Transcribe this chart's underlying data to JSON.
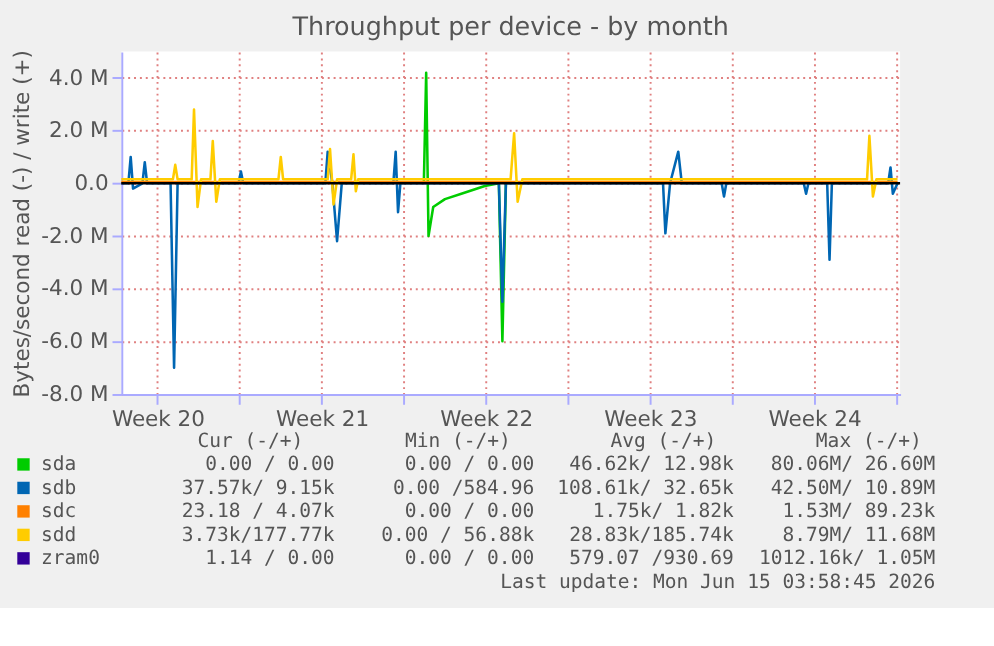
{
  "chart_data": {
    "type": "line",
    "title": "Throughput per device - by month",
    "ylabel": "Bytes/second read (-) / write (+)",
    "xlim": [
      "2026-05-12T23:00",
      "2026-06-15T04:00"
    ],
    "xticks": [
      {
        "value": "2026-05-14T12:00",
        "label": "Week 20"
      },
      {
        "value": "2026-05-18T00:00",
        "label": null
      },
      {
        "value": "2026-05-21T12:00",
        "label": "Week 21"
      },
      {
        "value": "2026-05-25T00:00",
        "label": null
      },
      {
        "value": "2026-05-28T12:00",
        "label": "Week 22"
      },
      {
        "value": "2026-06-01T00:00",
        "label": null
      },
      {
        "value": "2026-06-04T12:00",
        "label": "Week 23"
      },
      {
        "value": "2026-06-08T00:00",
        "label": null
      },
      {
        "value": "2026-06-11T12:00",
        "label": "Week 24"
      },
      {
        "value": "2026-06-15T00:00",
        "label": null
      }
    ],
    "ylim": [
      -8,
      5
    ],
    "yticks": [
      {
        "value": -8,
        "label": "-8.0 M"
      },
      {
        "value": -6,
        "label": "-6.0 M"
      },
      {
        "value": -4,
        "label": "-4.0 M"
      },
      {
        "value": -2,
        "label": "-2.0 M"
      },
      {
        "value": 0,
        "label": "0.0"
      },
      {
        "value": 2,
        "label": "2.0 M"
      },
      {
        "value": 4,
        "label": "4.0 M"
      }
    ],
    "grid": true,
    "legend": "bottom",
    "line_style": "solid",
    "marker": "none",
    "ref_lines": [
      {
        "axis": "y",
        "value": 0,
        "color": "#000000"
      }
    ],
    "series": [
      {
        "name": "sda",
        "color": "#00cc00",
        "x": [
          "2026-05-25T20:36",
          "2026-05-25T23:00",
          "2026-05-26T01:24",
          "2026-05-26T06:12",
          "2026-05-26T18:12",
          "2026-05-27T11:00",
          "2026-05-28T11:00",
          "2026-05-29T01:24",
          "2026-05-29T05:00",
          "2026-05-29T08:36"
        ],
        "values": [
          0,
          4.2,
          -2.0,
          -0.9,
          -0.6,
          -0.4,
          -0.1,
          0,
          -6.0,
          0
        ]
      },
      {
        "name": "sdb",
        "color": "#0066b3",
        "x": [
          "2026-05-12T23:00",
          "2026-05-13T06:12",
          "2026-05-13T08:36",
          "2026-05-13T11:00",
          "2026-05-13T20:36",
          "2026-05-13T23:00",
          "2026-05-14T01:24",
          "2026-05-15T01:24",
          "2026-05-15T05:00",
          "2026-05-15T08:36",
          "2026-05-17T23:00",
          "2026-05-18T01:24",
          "2026-05-18T03:48",
          "2026-05-21T15:48",
          "2026-05-21T18:12",
          "2026-05-21T23:00",
          "2026-05-22T03:48",
          "2026-05-22T08:36",
          "2026-05-24T13:24",
          "2026-05-24T15:48",
          "2026-05-24T18:12",
          "2026-05-24T20:36",
          "2026-05-29T01:24",
          "2026-05-29T05:00",
          "2026-05-29T08:36",
          "2026-06-05T01:24",
          "2026-06-05T03:48",
          "2026-06-05T08:36",
          "2026-06-05T17:00",
          "2026-06-05T20:36",
          "2026-06-07T13:24",
          "2026-06-07T15:48",
          "2026-06-07T18:12",
          "2026-06-11T01:24",
          "2026-06-11T03:48",
          "2026-06-11T06:12",
          "2026-06-12T01:24",
          "2026-06-12T03:48",
          "2026-06-12T06:12",
          "2026-06-14T15:48",
          "2026-06-14T18:12",
          "2026-06-14T20:36",
          "2026-06-15T01:24"
        ],
        "values": [
          0,
          0,
          1.0,
          -0.2,
          0,
          0.8,
          0,
          0,
          -7.0,
          0,
          0,
          0.45,
          0,
          0,
          1.2,
          0,
          -2.2,
          0,
          0,
          1.2,
          -1.1,
          0,
          0,
          -4.5,
          0,
          0,
          -1.9,
          0,
          1.2,
          0,
          0,
          -0.5,
          0,
          0,
          -0.4,
          0,
          0,
          -2.9,
          0,
          0,
          0.6,
          -0.4,
          0
        ]
      },
      {
        "name": "sdc",
        "color": "#ff8000",
        "x": [
          "2026-05-12T23:00",
          "2026-06-15T01:24"
        ],
        "values": [
          0.05,
          0.05
        ]
      },
      {
        "name": "sdd",
        "color": "#ffcc00",
        "x": [
          "2026-05-12T23:00",
          "2026-05-15T03:48",
          "2026-05-15T06:12",
          "2026-05-15T08:36",
          "2026-05-15T23:00",
          "2026-05-16T01:24",
          "2026-05-16T05:00",
          "2026-05-16T08:36",
          "2026-05-16T18:12",
          "2026-05-16T20:36",
          "2026-05-17T00:12",
          "2026-05-17T03:48",
          "2026-05-19T15:48",
          "2026-05-19T18:12",
          "2026-05-19T20:36",
          "2026-05-21T18:12",
          "2026-05-21T20:36",
          "2026-05-22T00:12",
          "2026-05-22T03:48",
          "2026-05-22T18:12",
          "2026-05-22T20:36",
          "2026-05-22T23:00",
          "2026-05-23T01:24",
          "2026-05-29T13:24",
          "2026-05-29T17:00",
          "2026-05-29T20:36",
          "2026-05-30T01:24",
          "2026-06-13T18:12",
          "2026-06-13T20:36",
          "2026-06-14T00:12",
          "2026-06-14T03:48",
          "2026-06-15T01:24"
        ],
        "values": [
          0.15,
          0.15,
          0.7,
          0.15,
          0.15,
          2.8,
          -0.9,
          0.15,
          0.15,
          1.6,
          -0.7,
          0.15,
          0.15,
          1.0,
          0.15,
          0.15,
          1.3,
          -0.8,
          0.15,
          0.15,
          1.1,
          -0.3,
          0.15,
          0.15,
          1.9,
          -0.7,
          0.15,
          0.15,
          1.8,
          -0.5,
          0.15,
          0.15
        ]
      },
      {
        "name": "zram0",
        "color": "#330099"
      }
    ],
    "annotations": [
      "Cur (-/+)",
      "Min (-/+)",
      "Avg (-/+)",
      "Max (-/+)",
      "0.00 /  0.00",
      "0.00 /  0.00",
      "46.62k/ 12.98k",
      "80.06M/ 26.60M",
      "37.57k/  9.15k",
      "0.00 /584.96",
      "108.61k/ 32.65k",
      "42.50M/ 10.89M",
      "23.18 /  4.07k",
      "0.00 /  0.00",
      "1.75k/  1.82k",
      "1.53M/ 89.23k",
      "3.73k/177.77k",
      "0.00 / 56.88k",
      "28.83k/185.74k",
      "8.79M/ 11.68M",
      "1.14 /  0.00",
      "0.00 /  0.00",
      "579.07 /930.69",
      "1012.16k/  1.05M",
      "Last update: Mon Jun 15 03:58:45 2026"
    ]
  }
}
